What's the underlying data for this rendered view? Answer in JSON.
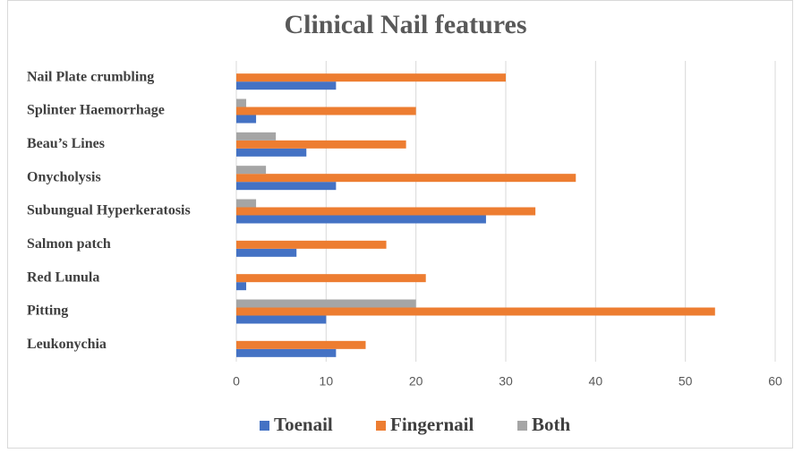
{
  "chart_data": {
    "type": "hbar",
    "title": "Clinical Nail features",
    "categories": [
      "Nail Plate crumbling",
      "Splinter Haemorrhage",
      "Beau’s Lines",
      "Onycholysis",
      "Subungual Hyperkeratosis",
      "Salmon patch",
      "Red Lunula",
      "Pitting",
      "Leukonychia"
    ],
    "series": [
      {
        "name": "Toenail",
        "color": "#4472c4",
        "values": [
          11.1,
          2.2,
          7.8,
          11.1,
          27.8,
          6.7,
          1.1,
          10,
          11.1
        ]
      },
      {
        "name": "Fingernail",
        "color": "#ed7d31",
        "values": [
          30,
          20,
          18.9,
          37.8,
          33.3,
          16.7,
          21.1,
          53.3,
          14.4
        ]
      },
      {
        "name": "Both",
        "color": "#a5a5a5",
        "values": [
          0,
          1.1,
          4.4,
          3.3,
          2.2,
          0,
          0,
          20,
          0
        ]
      }
    ],
    "xlim": [
      0,
      60
    ],
    "xticks": [
      0,
      10,
      20,
      30,
      40,
      50,
      60
    ],
    "grid": true,
    "legend": "bottom"
  }
}
